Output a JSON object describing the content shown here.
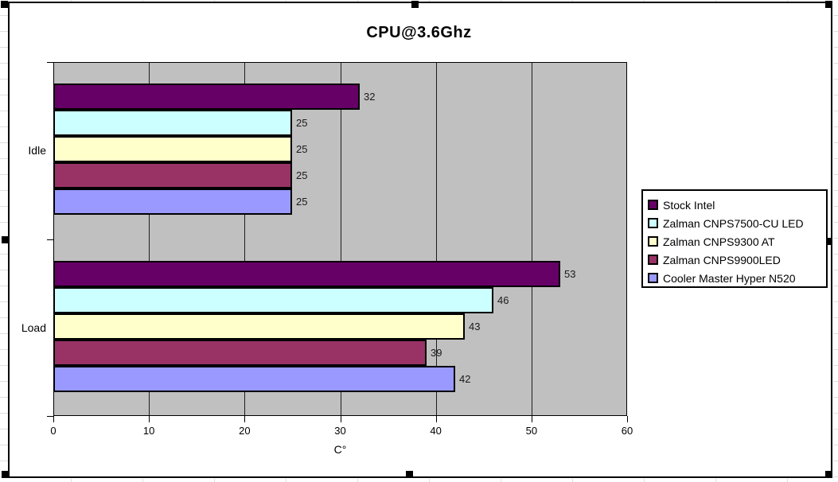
{
  "chart_data": {
    "type": "bar",
    "orientation": "horizontal",
    "title": "CPU@3.6Ghz",
    "xlabel": "C°",
    "categories": [
      "Idle",
      "Load"
    ],
    "series": [
      {
        "name": "Stock Intel",
        "color": "#660066",
        "values": [
          32,
          53
        ]
      },
      {
        "name": "Zalman CNPS7500-CU LED",
        "color": "#CCFFFF",
        "values": [
          25,
          46
        ]
      },
      {
        "name": "Zalman CNPS9300 AT",
        "color": "#FFFFCC",
        "values": [
          25,
          43
        ]
      },
      {
        "name": "Zalman CNPS9900LED",
        "color": "#993366",
        "values": [
          25,
          39
        ]
      },
      {
        "name": "Cooler Master Hyper N520",
        "color": "#9999FF",
        "values": [
          25,
          42
        ]
      }
    ],
    "xlim": [
      0,
      60
    ],
    "x_ticks": [
      0,
      10,
      20,
      30,
      40,
      50,
      60
    ],
    "grid": true,
    "data_labels": true,
    "legend_position": "right",
    "plot_bg": "#C0C0C0",
    "gridline_color": "#000000",
    "selection_handles": true
  }
}
